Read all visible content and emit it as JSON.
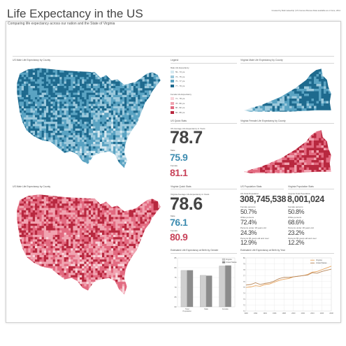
{
  "header": {
    "title": "Life Expectancy in the US",
    "subtitle": "Comparing life expectancy across our nation and the State of Virginia",
    "credit": "Created by Matt Lakewhip | US Census Bureau Data available as of June, 2011"
  },
  "sections": {
    "us_male_map": "US Male Life Expectancy by County",
    "us_female_map": "US Male Life Expectancy by County",
    "legend": "Legend",
    "va_male_map": "Virginia Male Life Expectancy by County",
    "va_female_map": "Virginia Female Life Expectancy by County",
    "us_quick": "US Quick Stats",
    "va_quick": "Virginia Quick Stats",
    "us_pop": "US Population Stats",
    "va_pop": "Virginia Population Stats",
    "bar_chart": "Estimated Life Expectancy at Birth by Gender",
    "line_chart": "Estimated Life Expectancy at Birth by Year"
  },
  "legend": {
    "male_title": "Male Life Expectancy",
    "male_items": [
      "59 - 73 yrs",
      "73 - 75 yrs",
      "75 - 77 yrs",
      "77 - 79 yrs"
    ],
    "female_title": "Female Life Expectancy",
    "female_items": [
      "71 - 78 yrs",
      "78 - 80 yrs",
      "80 - 82 yrs",
      "82 - 89 yrs"
    ],
    "colors": {
      "male": [
        "#d4e8f0",
        "#9cc9dc",
        "#5aa3c2",
        "#1e6a8e"
      ],
      "female": [
        "#f8d4da",
        "#f0a3b0",
        "#e26a80",
        "#b8283f"
      ]
    }
  },
  "us_quick": {
    "label": "US Average Life Expectancy in Years",
    "value": "78.7",
    "male_label": "Male",
    "male_value": "75.9",
    "female_label": "Female",
    "female_value": "81.1"
  },
  "va_quick": {
    "label": "Virginia Average Life Expectancy in Years",
    "value": "78.6",
    "male_label": "Male",
    "male_value": "76.1",
    "female_label": "Female",
    "female_value": "80.9"
  },
  "us_pop": {
    "total_label": "US Total Population",
    "total": "308,745,538",
    "female_label": "Female persons",
    "female": "50.7%",
    "white_label": "White persons",
    "white": "72.4%",
    "under18_label": "Persons under 18 years old",
    "under18": "24.3%",
    "over65_label": "Persons 65 years old and over",
    "over65": "12.9%"
  },
  "va_pop": {
    "total_label": "Virginia Total Population",
    "total": "8,001,024",
    "female_label": "Female persons",
    "female": "50.8%",
    "white_label": "White persons",
    "white": "68.6%",
    "under18_label": "Persons under 18 years old",
    "under18": "23.2%",
    "over65_label": "Persons 65 years old and over",
    "over65": "12.2%"
  },
  "colors": {
    "male_accent": "#3d8cb0",
    "female_accent": "#c8435a",
    "big_number": "#444444"
  },
  "chart_data": [
    {
      "type": "bar",
      "categories": [
        "Total Population",
        "Male",
        "Female"
      ],
      "series": [
        {
          "name": "Virginia",
          "values": [
            78.6,
            76.1,
            80.9
          ],
          "color": "#cfcfcf"
        },
        {
          "name": "United States",
          "values": [
            78.7,
            75.9,
            81.1
          ],
          "color": "#8c8c8c"
        }
      ],
      "ylim": [
        60,
        85
      ],
      "yticks": [
        60,
        65,
        70,
        75,
        80,
        85
      ],
      "legend_position": "top-right",
      "grid": true
    },
    {
      "type": "line",
      "x": [
        1990,
        1991,
        1992,
        1993,
        1994,
        1995,
        1996,
        1997,
        1998,
        1999,
        2000,
        2001,
        2002,
        2003,
        2004,
        2005,
        2006,
        2007,
        2008
      ],
      "series": [
        {
          "name": "Virginia",
          "values": [
            75.0,
            75.1,
            75.3,
            75.2,
            75.5,
            75.6,
            75.9,
            76.2,
            76.4,
            76.5,
            76.8,
            76.9,
            77.0,
            77.2,
            77.6,
            77.7,
            78.0,
            78.3,
            78.6
          ],
          "color": "#e8a35a"
        },
        {
          "name": "United States",
          "values": [
            75.4,
            75.5,
            75.8,
            75.5,
            75.7,
            75.8,
            76.1,
            76.5,
            76.7,
            76.7,
            76.8,
            76.9,
            77.0,
            77.1,
            77.5,
            77.4,
            77.7,
            77.9,
            78.1
          ],
          "color": "#b8875a"
        }
      ],
      "ylim": [
        71,
        80
      ],
      "yticks": [
        71,
        72,
        73,
        74,
        75,
        76,
        77,
        78,
        79,
        80
      ],
      "xticks": [
        1990,
        1992,
        1994,
        1996,
        1998,
        2000,
        2002,
        2004,
        2006,
        2008
      ],
      "legend_position": "top-right",
      "grid": true
    }
  ]
}
